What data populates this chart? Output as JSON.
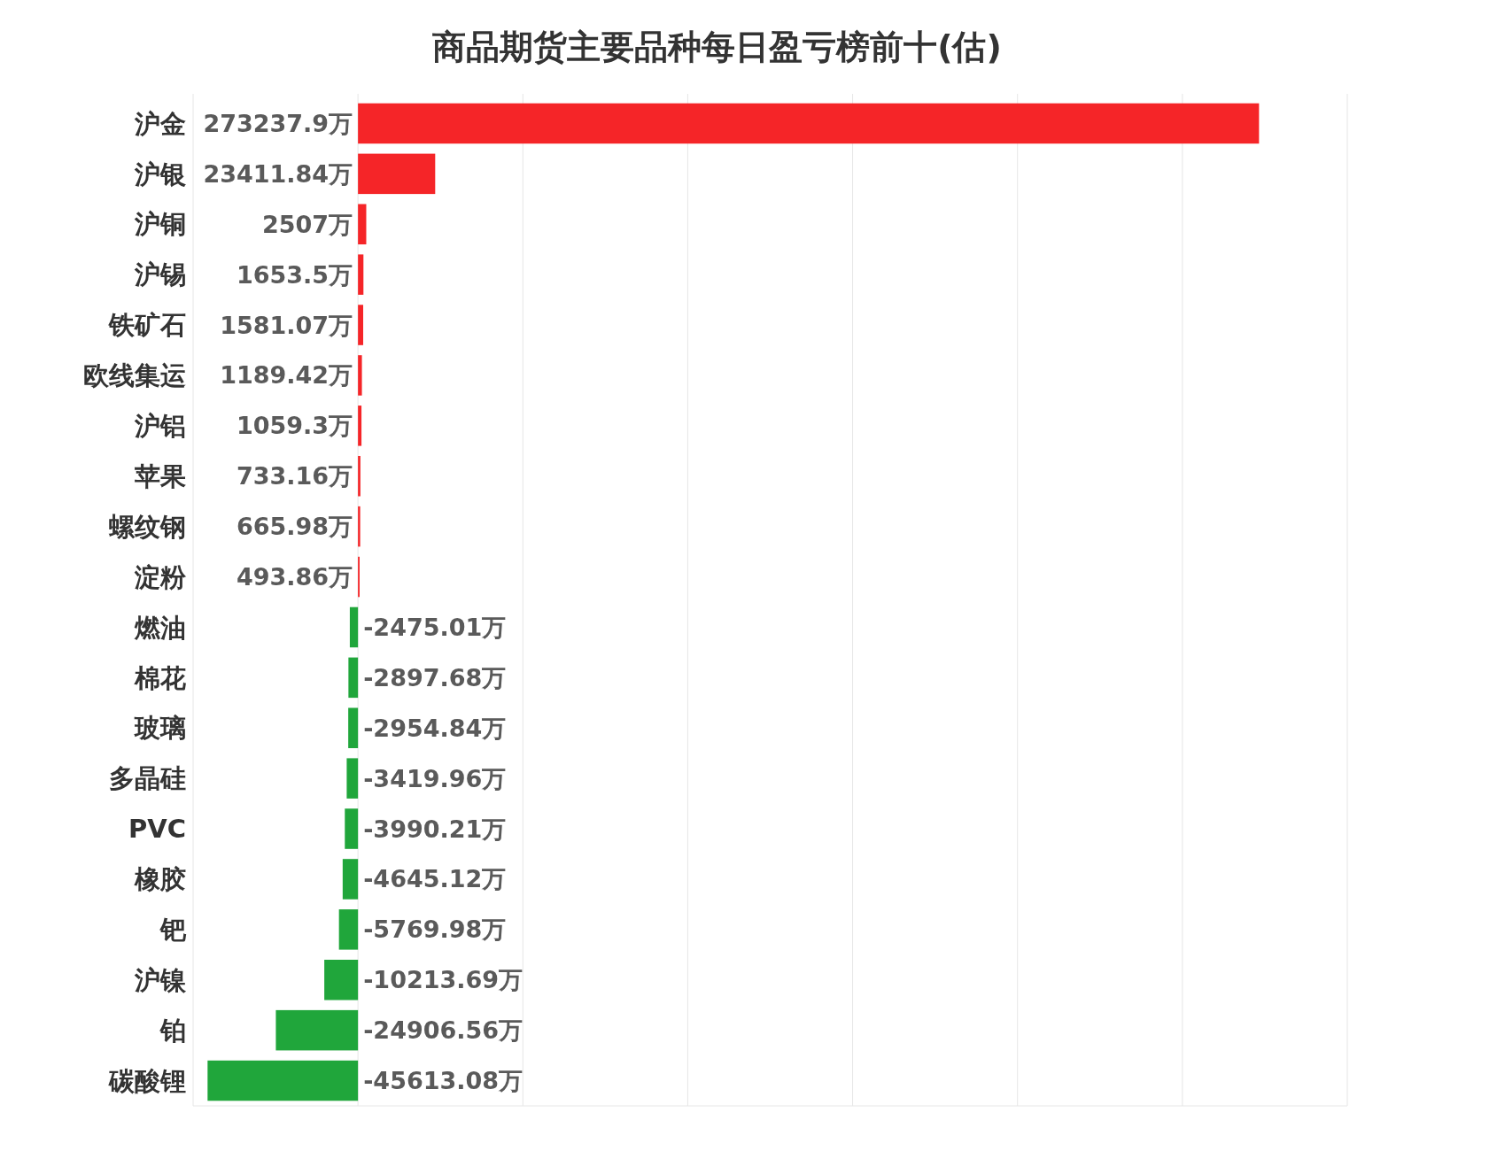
{
  "chart_data": {
    "type": "bar",
    "orientation": "horizontal",
    "title": "商品期货主要品种每日盈亏榜前十(估)",
    "categories": [
      "沪金",
      "沪银",
      "沪铜",
      "沪锡",
      "铁矿石",
      "欧线集运",
      "沪铝",
      "苹果",
      "螺纹钢",
      "淀粉",
      "燃油",
      "棉花",
      "玻璃",
      "多晶硅",
      "PVC",
      "橡胶",
      "钯",
      "沪镍",
      "铂",
      "碳酸锂"
    ],
    "values": [
      273237.9,
      23411.84,
      2507,
      1653.5,
      1581.07,
      1189.42,
      1059.3,
      733.16,
      665.98,
      493.86,
      -2475.01,
      -2897.68,
      -2954.84,
      -3419.96,
      -3990.21,
      -4645.12,
      -5769.98,
      -10213.69,
      -24906.56,
      -45613.08
    ],
    "value_labels": [
      "273237.9万",
      "23411.84万",
      "2507万",
      "1653.5万",
      "1581.07万",
      "1189.42万",
      "1059.3万",
      "733.16万",
      "665.98万",
      "493.86万",
      "-2475.01万",
      "-2897.68万",
      "-2954.84万",
      "-3419.96万",
      "-3990.21万",
      "-4645.12万",
      "-5769.98万",
      "-10213.69万",
      "-24906.56万",
      "-45613.08万"
    ],
    "colors": [
      "#f52528",
      "#f52528",
      "#f52528",
      "#f52528",
      "#f52528",
      "#f52528",
      "#f52528",
      "#f52528",
      "#f52528",
      "#f52528",
      "#20a63b",
      "#20a63b",
      "#20a63b",
      "#20a63b",
      "#20a63b",
      "#20a63b",
      "#20a63b",
      "#20a63b",
      "#20a63b",
      "#20a63b"
    ],
    "xlim": [
      -50000,
      300000
    ],
    "xticks": [
      {
        "value": -50000,
        "label": null
      },
      {
        "value": 0,
        "label": null
      },
      {
        "value": 50000,
        "label": null
      },
      {
        "value": 100000,
        "label": null
      },
      {
        "value": 150000,
        "label": null
      },
      {
        "value": 200000,
        "label": null
      },
      {
        "value": 250000,
        "label": null
      },
      {
        "value": 300000,
        "label": null
      }
    ],
    "grid": "x",
    "tick_labels": "y"
  }
}
